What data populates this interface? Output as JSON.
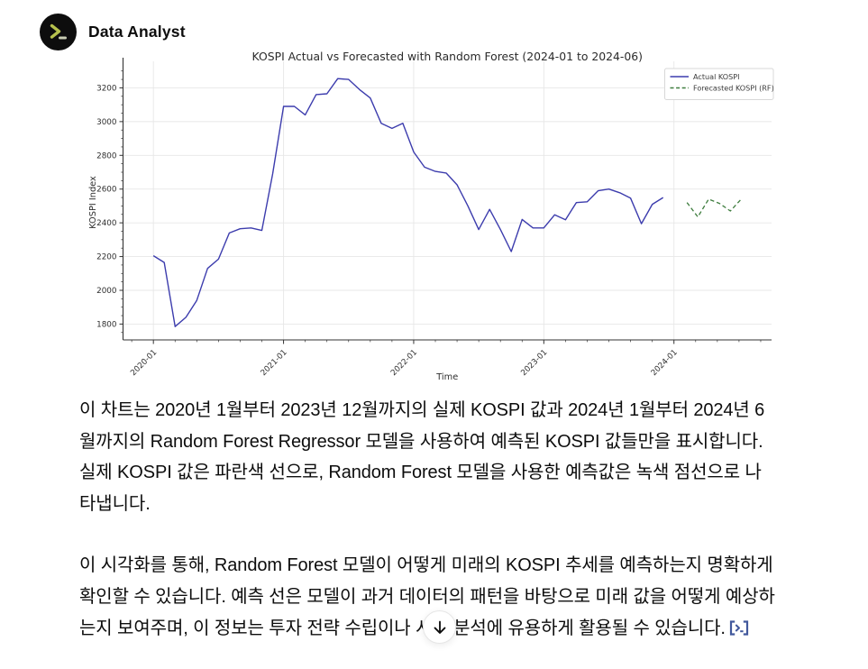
{
  "header": {
    "app_name": "Data Analyst",
    "avatar_icon": "terminal-prompt-icon",
    "avatar_bg": "#0d0d0d",
    "avatar_accent": "#b6c14d"
  },
  "chart_data": {
    "type": "line",
    "title": "KOSPI Actual vs Forecasted with Random Forest (2024-01 to 2024-06)",
    "xlabel": "Time",
    "ylabel": "KOSPI Index",
    "grid": true,
    "legend_position": "upper right",
    "x_start": "2020-01",
    "x_frequency": "monthly",
    "x_tick_labels": [
      "2020-01",
      "2021-01",
      "2022-01",
      "2023-01",
      "2024-01"
    ],
    "x_tick_months": [
      0,
      12,
      24,
      36,
      48
    ],
    "y_ticks": [
      1800,
      2000,
      2200,
      2400,
      2600,
      2800,
      3000,
      3200
    ],
    "ylim": [
      1706,
      3336
    ],
    "xlim_months": [
      -2.8,
      57.0
    ],
    "grid_color": "#e7e7e7",
    "axis_color": "#333333",
    "series": [
      {
        "name": "Actual KOSPI",
        "color": "#3c3cad",
        "style": "solid",
        "start_month": 0,
        "months": [
          "2020-01",
          "2020-02",
          "2020-03",
          "2020-04",
          "2020-05",
          "2020-06",
          "2020-07",
          "2020-08",
          "2020-09",
          "2020-10",
          "2020-11",
          "2020-12",
          "2021-01",
          "2021-02",
          "2021-03",
          "2021-04",
          "2021-05",
          "2021-06",
          "2021-07",
          "2021-08",
          "2021-09",
          "2021-10",
          "2021-11",
          "2021-12",
          "2022-01",
          "2022-02",
          "2022-03",
          "2022-04",
          "2022-05",
          "2022-06",
          "2022-07",
          "2022-08",
          "2022-09",
          "2022-10",
          "2022-11",
          "2022-12",
          "2023-01",
          "2023-02",
          "2023-03",
          "2023-04",
          "2023-05",
          "2023-06",
          "2023-07",
          "2023-08",
          "2023-09",
          "2023-10",
          "2023-11",
          "2023-12"
        ],
        "values": [
          2205,
          2165,
          1785,
          1840,
          1940,
          2130,
          2185,
          2340,
          2365,
          2370,
          2355,
          2690,
          3090,
          3090,
          3040,
          3160,
          3165,
          3255,
          3250,
          3190,
          3140,
          2990,
          2960,
          2990,
          2820,
          2730,
          2705,
          2695,
          2625,
          2500,
          2360,
          2480,
          2360,
          2230,
          2420,
          2370,
          2370,
          2448,
          2418,
          2520,
          2525,
          2590,
          2600,
          2578,
          2546,
          2395,
          2510,
          2550
        ]
      },
      {
        "name": "Forecasted KOSPI (RF)",
        "color": "#3e7d3e",
        "style": "dashed",
        "start_month": 49.2,
        "months": [
          "2024-01",
          "2024-02",
          "2024-03",
          "2024-04",
          "2024-05",
          "2024-06"
        ],
        "values": [
          2520,
          2435,
          2540,
          2515,
          2470,
          2540
        ]
      }
    ]
  },
  "paragraphs": [
    {
      "text": "이 차트는 2020년 1월부터 2023년 12월까지의 실제 KOSPI 값과 2024년 1월부터 2024년 6월까지의 Random Forest Regressor 모델을 사용하여 예측된 KOSPI 값들만을 표시합니다. 실제 KOSPI 값은 파란색 선으로, Random Forest 모델을 사용한 예측값은 녹색 점선으로 나타냅니다."
    },
    {
      "text": "이 시각화를 통해, Random Forest 모델이 어떻게 미래의 KOSPI 추세를 예측하는지 명확하게 확인할 수 있습니다. 예측 선은 모델이 과거 데이터의 패턴을 바탕으로 미래 값을 어떻게 예상하는지 보여주며, 이 정보는 투자 전략 수립이나 시장 분석에 유용하게 활용될 수 있습니다."
    }
  ],
  "scroll_button": {
    "icon": "arrow-down-icon"
  },
  "citation_badge": {
    "icon": "terminal-prompt-badge-icon",
    "color": "#41589c"
  }
}
